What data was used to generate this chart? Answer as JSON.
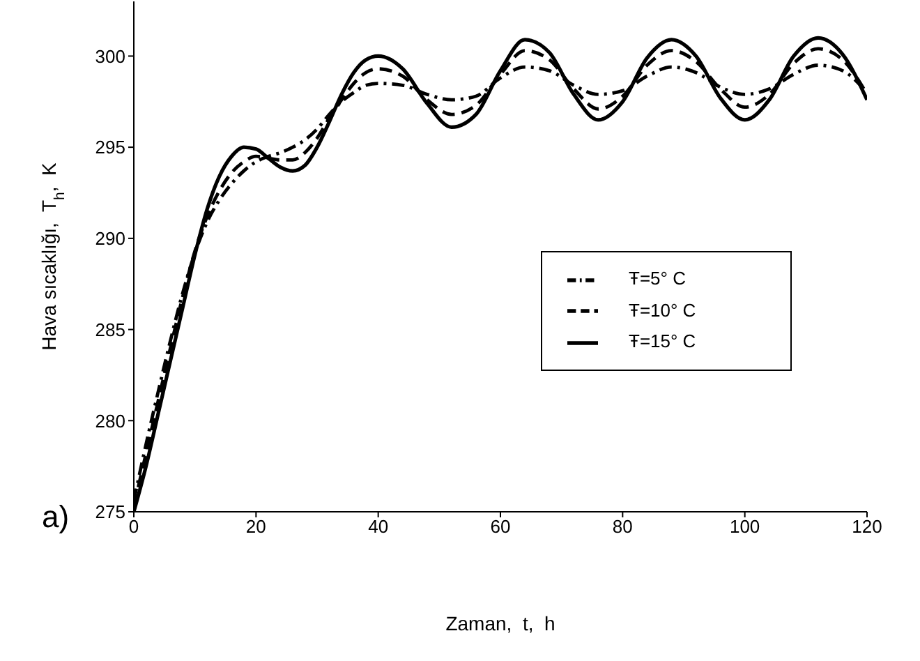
{
  "chart_data": {
    "type": "line",
    "xlabel": "Zaman,  t,  h",
    "ylabel": "Hava sıcaklığı,  T$_{h}$,  K",
    "annotations": [
      "a)"
    ],
    "x": [
      0,
      2,
      4,
      6,
      8,
      10,
      12,
      14,
      16,
      18,
      20,
      22,
      24,
      26,
      28,
      30,
      32,
      34,
      36,
      38,
      40,
      44,
      48,
      52,
      56,
      60,
      64,
      68,
      72,
      76,
      80,
      84,
      88,
      92,
      96,
      100,
      104,
      108,
      112,
      116,
      120
    ],
    "series": [
      {
        "name": "Ŧ=5° C",
        "color": "#000000",
        "line_style": "dashdot",
        "values": [
          275.6,
          278.7,
          281.6,
          284.4,
          287,
          289.2,
          290.9,
          292.1,
          293,
          293.7,
          294.2,
          294.5,
          294.7,
          295,
          295.4,
          296,
          296.8,
          297.5,
          298,
          298.4,
          298.5,
          298.4,
          297.9,
          297.6,
          297.8,
          298.8,
          299.4,
          299.2,
          298.4,
          297.9,
          298.1,
          298.9,
          299.4,
          299.1,
          298.3,
          297.9,
          298.2,
          299,
          299.5,
          299.2,
          298
        ]
      },
      {
        "name": "Ŧ=10° C",
        "color": "#000000",
        "line_style": "dashed",
        "values": [
          275.3,
          278.2,
          281.1,
          284,
          286.8,
          289.3,
          291.2,
          292.6,
          293.6,
          294.2,
          294.5,
          294.4,
          294.3,
          294.3,
          294.7,
          295.5,
          296.6,
          297.6,
          298.5,
          299.1,
          299.3,
          298.9,
          297.6,
          296.8,
          297.3,
          299,
          300.3,
          299.8,
          298.2,
          297.1,
          297.8,
          299.5,
          300.3,
          299.7,
          298.2,
          297.2,
          297.9,
          299.6,
          300.4,
          299.8,
          297.9
        ]
      },
      {
        "name": "Ŧ=15° C",
        "color": "#000000",
        "line_style": "solid",
        "values": [
          275,
          277.5,
          280.4,
          283.3,
          286.2,
          289.1,
          291.6,
          293.4,
          294.5,
          295,
          294.9,
          294.4,
          293.9,
          293.7,
          294,
          295,
          296.4,
          297.9,
          299.1,
          299.8,
          300,
          299.3,
          297.4,
          296.1,
          296.8,
          299.2,
          300.9,
          300.2,
          297.9,
          296.5,
          297.5,
          299.9,
          300.9,
          300,
          297.7,
          296.5,
          297.6,
          300,
          301,
          300.1,
          297.6
        ]
      }
    ],
    "xlim": [
      0,
      120
    ],
    "xticks": [
      0,
      20,
      40,
      60,
      80,
      100,
      120
    ],
    "ylim": [
      275,
      303
    ],
    "yticks": [
      275,
      280,
      285,
      290,
      295,
      300
    ],
    "legend": "right",
    "marker": "none",
    "grid": false
  }
}
